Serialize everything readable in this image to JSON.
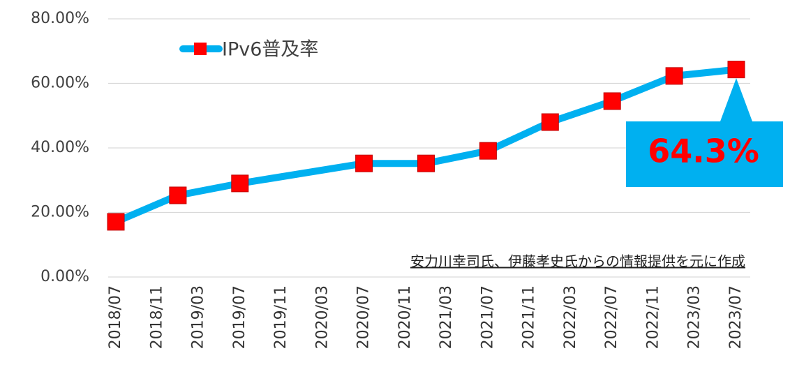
{
  "chart_data": {
    "type": "line",
    "x": [
      "2018/07",
      "2019/01",
      "2019/07",
      "2020/07",
      "2021/01",
      "2021/07",
      "2022/01",
      "2022/07",
      "2023/01",
      "2023/07"
    ],
    "series": [
      {
        "name": "IPv6普及率",
        "color": "#00b0f0",
        "marker_color": "#ff0000",
        "values": [
          17.1,
          25.3,
          29.0,
          35.2,
          35.2,
          39.1,
          48.0,
          54.5,
          62.3,
          64.3
        ]
      }
    ],
    "xlim": [
      "2018/07",
      "2023/07"
    ],
    "xticks": [
      "2018/07",
      "2018/11",
      "2019/03",
      "2019/07",
      "2019/11",
      "2020/03",
      "2020/07",
      "2020/11",
      "2021/03",
      "2021/07",
      "2021/11",
      "2022/03",
      "2022/07",
      "2022/11",
      "2023/03",
      "2023/07"
    ],
    "ylim": [
      0,
      80
    ],
    "yticks": [
      {
        "value": 0,
        "label": "0.00%"
      },
      {
        "value": 20,
        "label": "20.00%"
      },
      {
        "value": 40,
        "label": "40.00%"
      },
      {
        "value": 60,
        "label": "60.00%"
      },
      {
        "value": 80,
        "label": "80.00%"
      }
    ],
    "grid": true,
    "legend": "top-left",
    "annotation": "64.3%",
    "note": "安力川幸司氏、伊藤孝史氏からの情報提供を元に作成"
  }
}
